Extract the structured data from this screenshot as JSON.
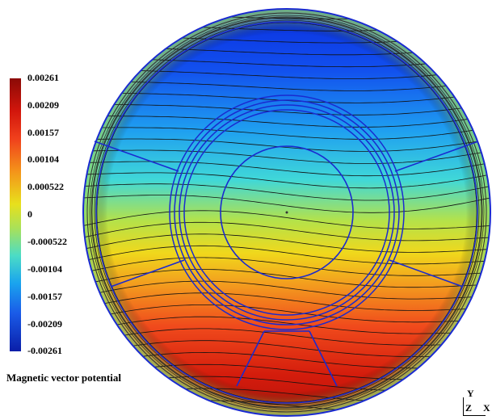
{
  "legend": {
    "ticks": [
      "0.00261",
      "0.00209",
      "0.00157",
      "0.00104",
      "0.000522",
      "0",
      "-0.000522",
      "-0.00104",
      "-0.00157",
      "-0.00209",
      "-0.00261"
    ],
    "title": "Magnetic vector potential",
    "colors": [
      "#8b0a06",
      "#d2160c",
      "#f0401c",
      "#f4931a",
      "#e8e01c",
      "#a8e15a",
      "#4bdcc6",
      "#1aa4ee",
      "#1a5be8",
      "#0a1ea8"
    ]
  },
  "axes": {
    "y": "Y",
    "z": "Z",
    "x": "X"
  },
  "colors": {
    "outline": "#1a2ad0",
    "contour": "#111111"
  }
}
